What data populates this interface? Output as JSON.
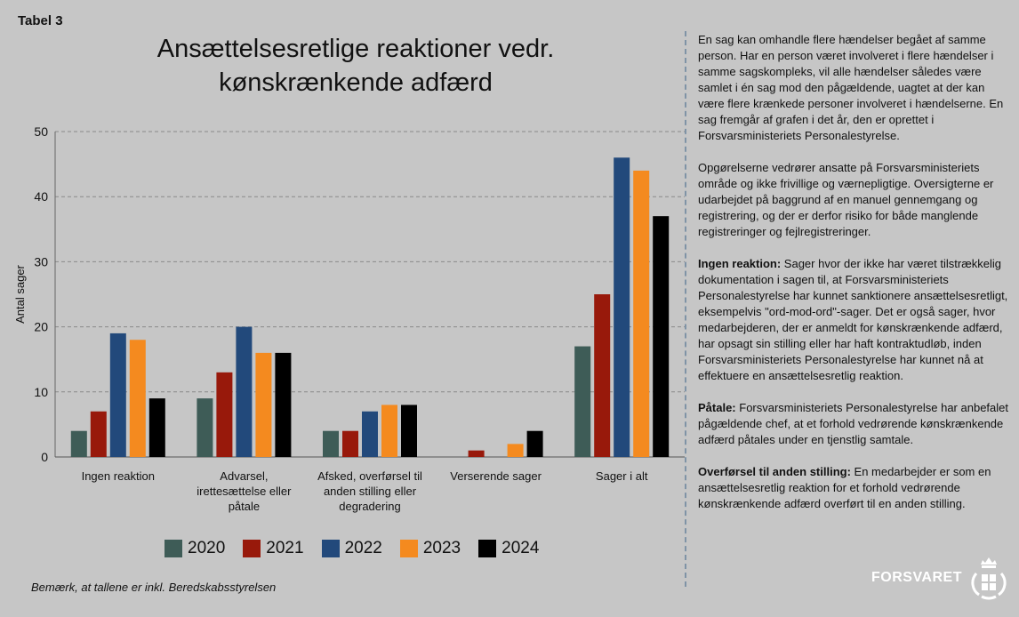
{
  "label": "Tabel 3",
  "note": "Bemærk, at tallene er inkl. Beredskabsstyrelsen",
  "logo_text": "FORSVARET",
  "chart_data": {
    "type": "bar",
    "title": "Ansættelsesretlige reaktioner vedr. kønskrænkende adfærd",
    "ylabel": "Antal sager",
    "xlabel": "",
    "ylim": [
      0,
      50
    ],
    "yticks": [
      0,
      10,
      20,
      30,
      40,
      50
    ],
    "grid": true,
    "legend_position": "bottom",
    "categories": [
      "Ingen reaktion",
      "Advarsel, irettesættelse eller påtale",
      "Afsked, overførsel til anden stilling eller degradering",
      "Verserende sager",
      "Sager i alt"
    ],
    "category_lines": [
      [
        "Ingen reaktion"
      ],
      [
        "Advarsel,",
        "irettesættelse eller",
        "påtale"
      ],
      [
        "Afsked, overførsel til",
        "anden stilling eller",
        "degradering"
      ],
      [
        "Verserende sager"
      ],
      [
        "Sager i alt"
      ]
    ],
    "series": [
      {
        "name": "2020",
        "color": "#3e5c57",
        "values": [
          4,
          9,
          4,
          0,
          17
        ]
      },
      {
        "name": "2021",
        "color": "#98190b",
        "values": [
          7,
          13,
          4,
          1,
          25
        ]
      },
      {
        "name": "2022",
        "color": "#22497b",
        "values": [
          19,
          20,
          7,
          0,
          46
        ]
      },
      {
        "name": "2023",
        "color": "#f48a1f",
        "values": [
          18,
          16,
          8,
          2,
          44
        ]
      },
      {
        "name": "2024",
        "color": "#000000",
        "values": [
          9,
          16,
          8,
          4,
          37
        ]
      }
    ]
  },
  "panel": {
    "p1": "En sag kan omhandle flere hændelser begået af samme person. Har en person været involveret i flere hændelser i samme sagskompleks, vil alle hændelser således være samlet i én sag mod den pågældende, uagtet at der kan være flere krænkede personer involveret i hændelserne. En sag fremgår af grafen i det år, den er oprettet i Forsvarsministeriets Personalestyrelse.",
    "p2": "Opgørelserne vedrører ansatte på Forsvarsministeriets område og ikke frivillige og værnepligtige. Oversigterne er udarbejdet på baggrund af en manuel gennemgang og registrering, og der er derfor risiko for både manglende registreringer og fejlregistreringer.",
    "p3_term": "Ingen reaktion:",
    "p3": " Sager hvor der ikke har været tilstrækkelig dokumentation i sagen til, at Forsvarsministeriets Personalestyrelse har kunnet sanktionere ansættelsesretligt, eksempelvis \"ord-mod-ord\"-sager. Det er også sager, hvor medarbejderen, der er anmeldt for kønskrænkende adfærd, har opsagt sin stilling eller har haft kontraktudløb, inden Forsvarsministeriets Personalestyrelse har kunnet nå at effektuere en ansættelsesretlig reaktion.",
    "p4_term": "Påtale:",
    "p4": " Forsvarsministeriets Personalestyrelse har anbefalet pågældende chef, at et forhold vedrørende kønskrænkende adfærd påtales under en tjenstlig samtale.",
    "p5_term": "Overførsel til anden stilling:",
    "p5": " En medarbejder er som en ansættelsesretlig reaktion for et forhold vedrørende kønskrænkende adfærd overført til en anden stilling."
  }
}
